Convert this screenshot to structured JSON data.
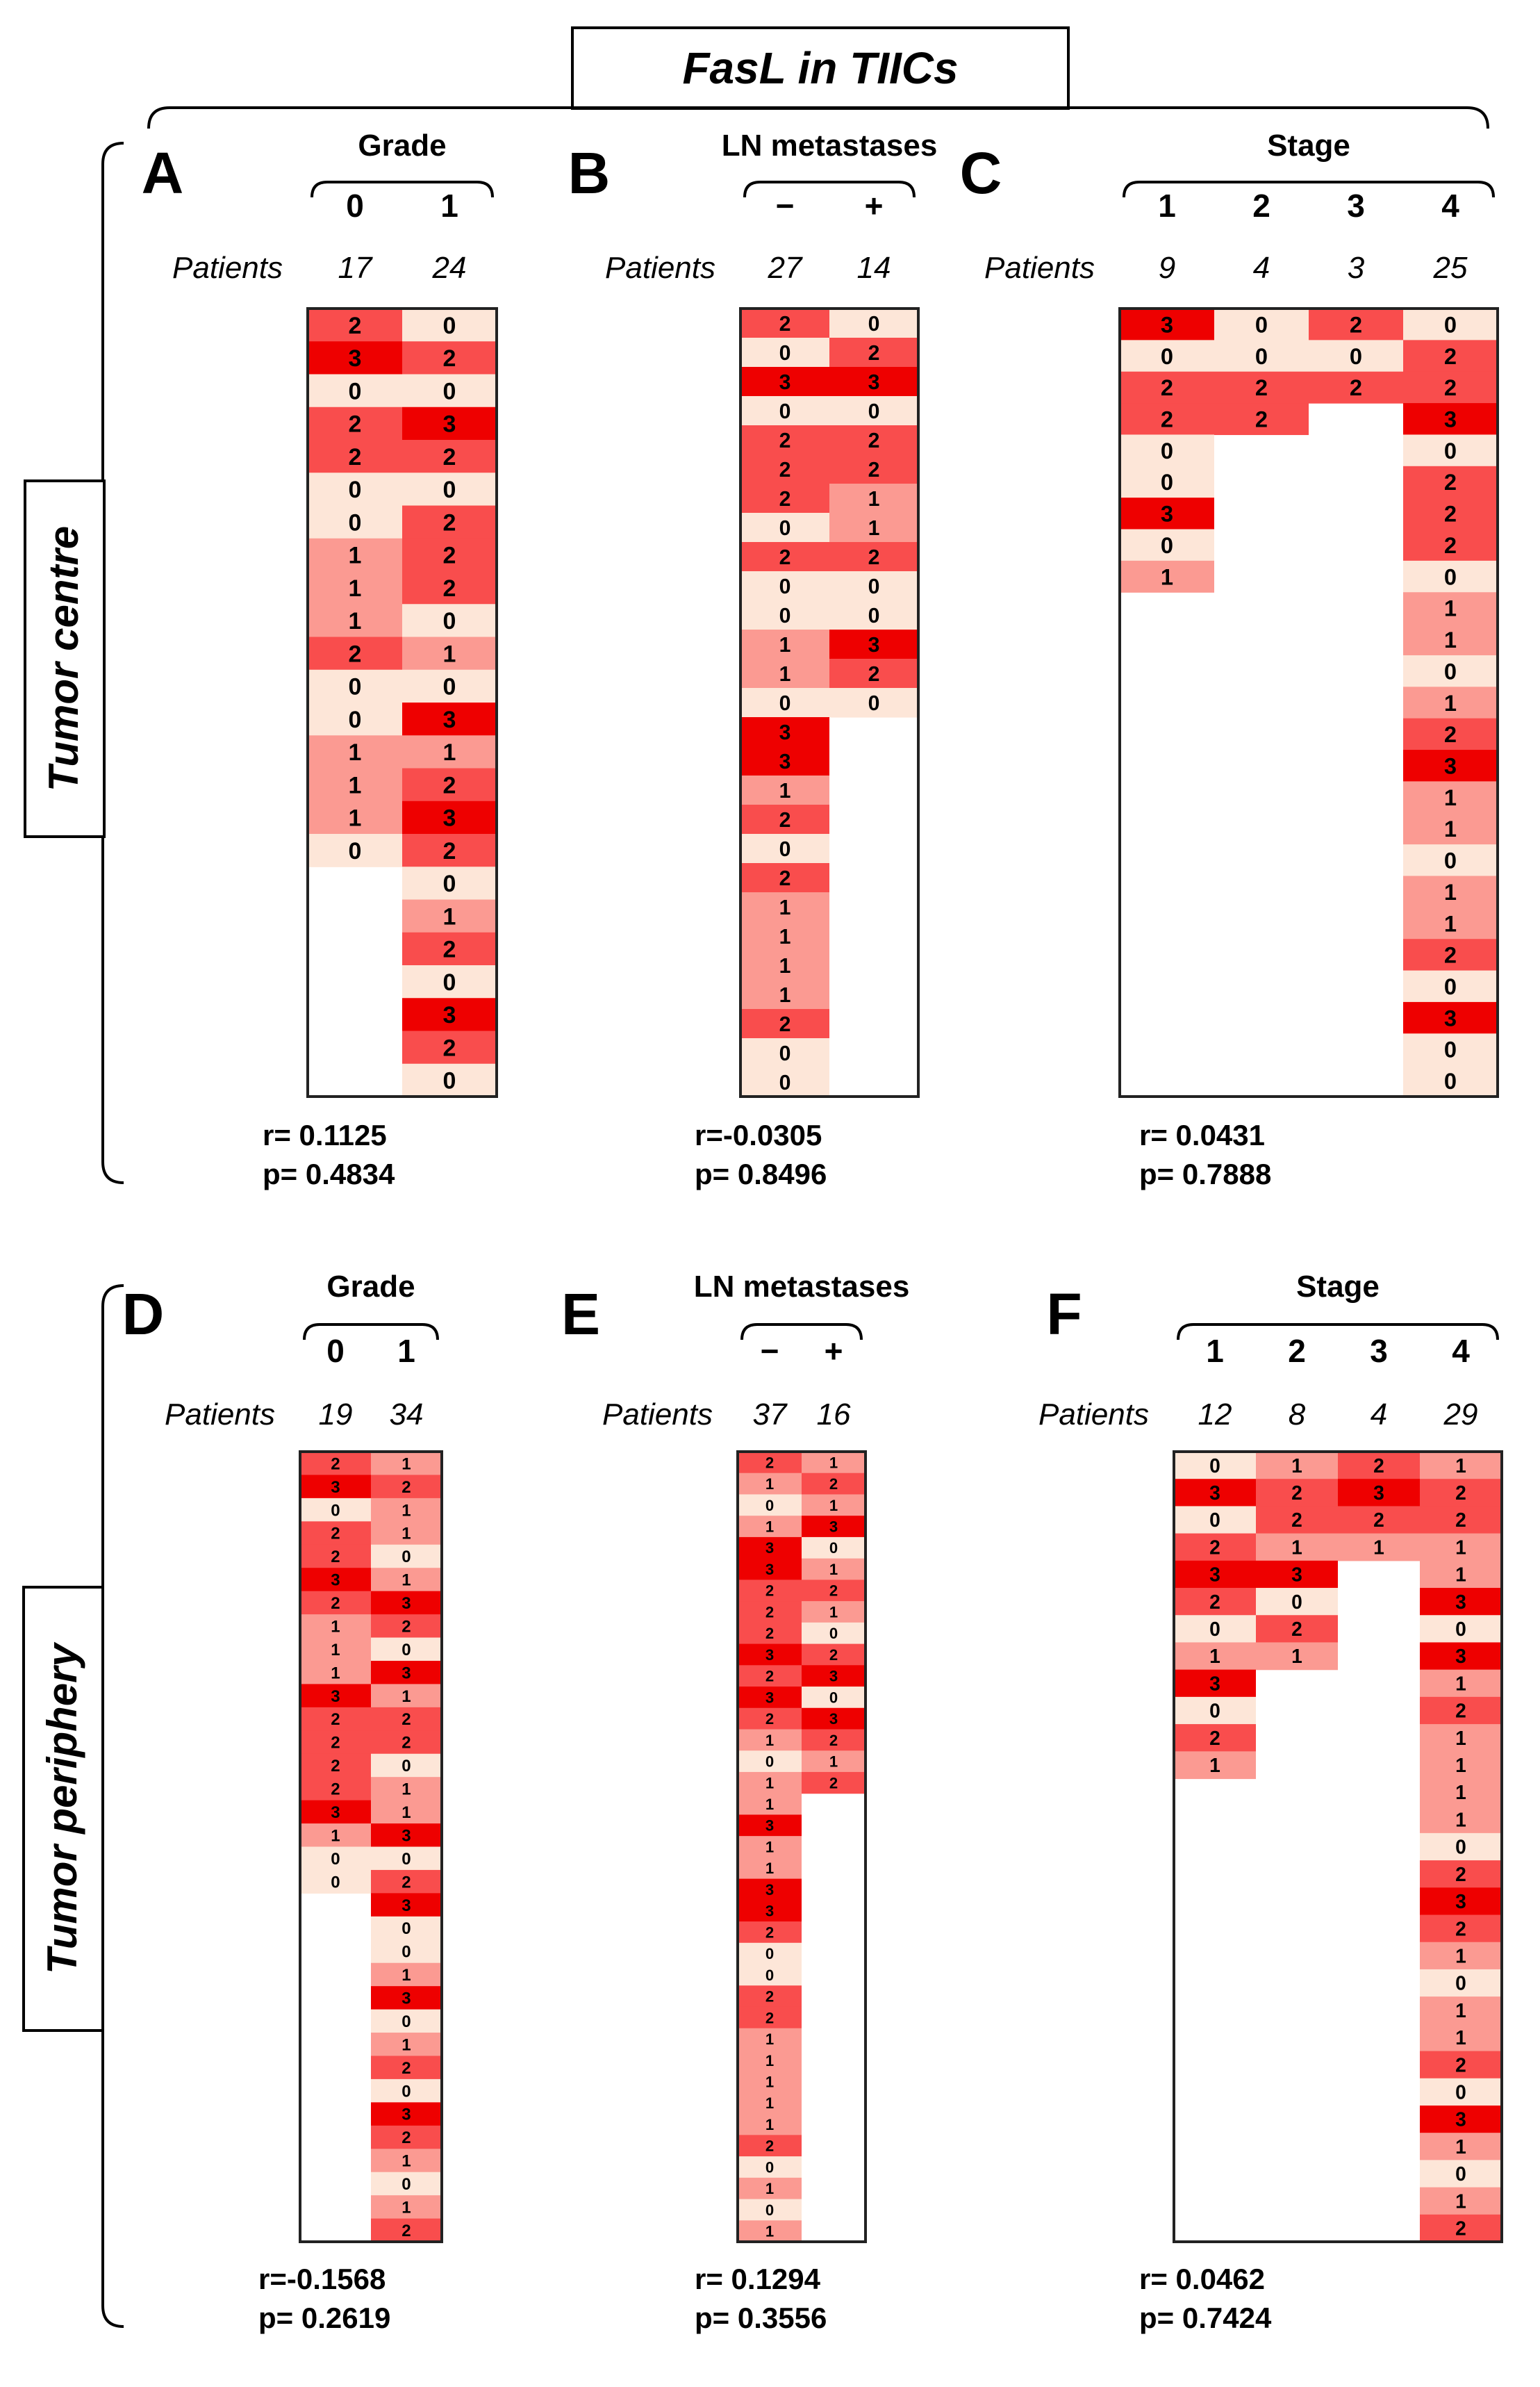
{
  "title": "FasL in TIICs",
  "row_labels": [
    "Tumor centre",
    "Tumor periphery"
  ],
  "patients_label": "Patients",
  "colors": {
    "0": "#fde6d8",
    "1": "#fb9a92",
    "2": "#f94d4d",
    "3": "#ee0000",
    "border": "#222222"
  },
  "chart_data": [
    {
      "type": "heatmap",
      "letter": "A",
      "group_label": "Grade",
      "categories": [
        "0",
        "1"
      ],
      "patients": [
        "17",
        "24"
      ],
      "values": [
        [
          2,
          3,
          0,
          2,
          2,
          0,
          0,
          1,
          1,
          1,
          2,
          0,
          0,
          1,
          1,
          1,
          0
        ],
        [
          0,
          2,
          0,
          3,
          2,
          0,
          2,
          2,
          2,
          0,
          1,
          0,
          3,
          1,
          2,
          3,
          2,
          0,
          1,
          2,
          0,
          3,
          2,
          0
        ]
      ],
      "stats": {
        "r": "r=  0.1125",
        "p": "p= 0.4834"
      }
    },
    {
      "type": "heatmap",
      "letter": "B",
      "group_label": "LN metastases",
      "categories": [
        "−",
        "+"
      ],
      "patients": [
        "27",
        "14"
      ],
      "values": [
        [
          2,
          0,
          3,
          0,
          2,
          2,
          2,
          0,
          2,
          0,
          0,
          1,
          1,
          0,
          3,
          3,
          1,
          2,
          0,
          2,
          1,
          1,
          1,
          1,
          2,
          0,
          0
        ],
        [
          0,
          2,
          3,
          0,
          2,
          2,
          1,
          1,
          2,
          0,
          0,
          3,
          2,
          0
        ]
      ],
      "stats": {
        "r": "r=-0.0305",
        "p": "p= 0.8496"
      }
    },
    {
      "type": "heatmap",
      "letter": "C",
      "group_label": "Stage",
      "categories": [
        "1",
        "2",
        "3",
        "4"
      ],
      "patients": [
        "9",
        "4",
        "3",
        "25"
      ],
      "values": [
        [
          3,
          0,
          2,
          2,
          0,
          0,
          3,
          0,
          1
        ],
        [
          0,
          0,
          2,
          2
        ],
        [
          2,
          0,
          2
        ],
        [
          0,
          2,
          2,
          3,
          0,
          2,
          2,
          2,
          0,
          1,
          1,
          0,
          1,
          2,
          3,
          1,
          1,
          0,
          1,
          1,
          2,
          0,
          3,
          0,
          0
        ]
      ],
      "stats": {
        "r": "r=  0.0431",
        "p": "p= 0.7888"
      }
    },
    {
      "type": "heatmap",
      "letter": "D",
      "group_label": "Grade",
      "categories": [
        "0",
        "1"
      ],
      "patients": [
        "19",
        "34"
      ],
      "values": [
        [
          2,
          3,
          0,
          2,
          2,
          3,
          2,
          1,
          1,
          1,
          3,
          2,
          2,
          2,
          2,
          3,
          1,
          0,
          0
        ],
        [
          1,
          2,
          1,
          1,
          0,
          1,
          3,
          2,
          0,
          3,
          1,
          2,
          2,
          0,
          1,
          1,
          3,
          0,
          2,
          3,
          0,
          0,
          1,
          3,
          0,
          1,
          2,
          0,
          3,
          2,
          1,
          0,
          1,
          2
        ]
      ],
      "stats": {
        "r": "r=-0.1568",
        "p": "p= 0.2619"
      }
    },
    {
      "type": "heatmap",
      "letter": "E",
      "group_label": "LN metastases",
      "categories": [
        "−",
        "+"
      ],
      "patients": [
        "37",
        "16"
      ],
      "values": [
        [
          2,
          1,
          0,
          1,
          3,
          3,
          2,
          2,
          2,
          3,
          2,
          3,
          2,
          1,
          0,
          1,
          1,
          3,
          1,
          1,
          3,
          3,
          2,
          0,
          0,
          2,
          2,
          1,
          1,
          1,
          1,
          1,
          2,
          0,
          1,
          0,
          1
        ],
        [
          1,
          2,
          1,
          3,
          0,
          1,
          2,
          1,
          0,
          2,
          3,
          0,
          3,
          2,
          1,
          2
        ]
      ],
      "stats": {
        "r": "r=  0.1294",
        "p": "p= 0.3556"
      }
    },
    {
      "type": "heatmap",
      "letter": "F",
      "group_label": "Stage",
      "categories": [
        "1",
        "2",
        "3",
        "4"
      ],
      "patients": [
        "12",
        "8",
        "4",
        "29"
      ],
      "values": [
        [
          0,
          3,
          0,
          2,
          3,
          2,
          0,
          1,
          3,
          0,
          2,
          1
        ],
        [
          1,
          2,
          2,
          1,
          3,
          0,
          2,
          1
        ],
        [
          2,
          3,
          2,
          1
        ],
        [
          1,
          2,
          2,
          1,
          1,
          3,
          0,
          3,
          1,
          2,
          1,
          1,
          1,
          1,
          0,
          2,
          3,
          2,
          1,
          0,
          1,
          1,
          2,
          0,
          3,
          1,
          0,
          1,
          2
        ]
      ],
      "stats": {
        "r": "r=  0.0462",
        "p": "p= 0.7424"
      }
    }
  ]
}
